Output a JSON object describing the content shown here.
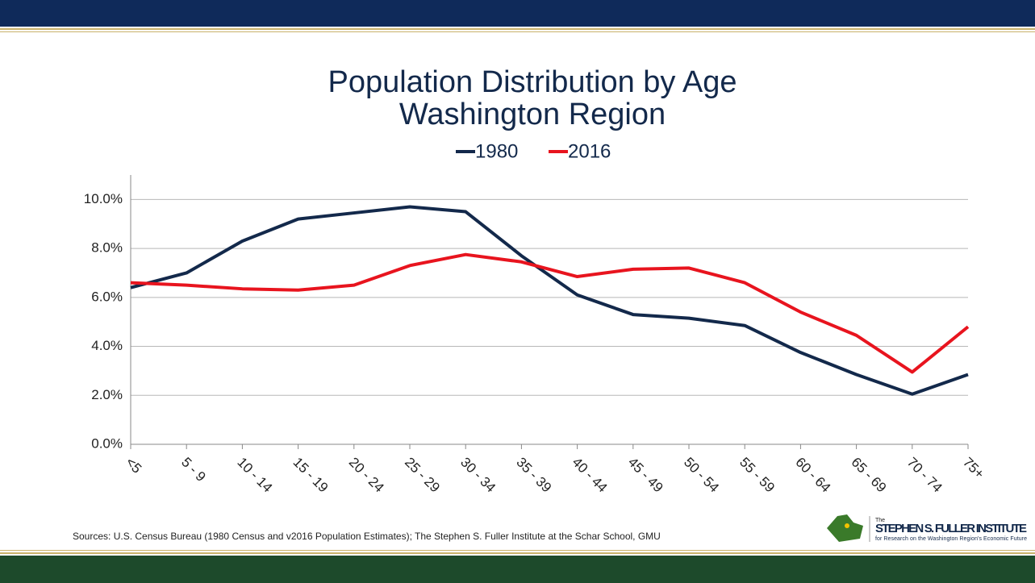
{
  "chart_data": {
    "type": "line",
    "title": "Population Distribution by Age",
    "subtitle": "Washington Region",
    "categories": [
      "<5",
      "5 - 9",
      "10 - 14",
      "15 - 19",
      "20 - 24",
      "25 - 29",
      "30 - 34",
      "35 - 39",
      "40 - 44",
      "45 - 49",
      "50 - 54",
      "55 - 59",
      "60 - 64",
      "65 - 69",
      "70 - 74",
      "75+"
    ],
    "series": [
      {
        "name": "1980",
        "color": "#13294b",
        "values": [
          6.4,
          7.0,
          8.3,
          9.2,
          9.45,
          9.7,
          9.5,
          7.7,
          6.1,
          5.3,
          5.15,
          4.85,
          3.75,
          2.85,
          2.05,
          2.85
        ]
      },
      {
        "name": "2016",
        "color": "#e8141e",
        "values": [
          6.6,
          6.5,
          6.35,
          6.3,
          6.5,
          7.3,
          7.75,
          7.45,
          6.85,
          7.15,
          7.2,
          6.6,
          5.4,
          4.45,
          2.95,
          4.8
        ]
      }
    ],
    "ylim": [
      0,
      11
    ],
    "yticks": [
      {
        "value": 0,
        "label": "0.0%"
      },
      {
        "value": 2,
        "label": "2.0%"
      },
      {
        "value": 4,
        "label": "4.0%"
      },
      {
        "value": 6,
        "label": "6.0%"
      },
      {
        "value": 8,
        "label": "8.0%"
      },
      {
        "value": 10,
        "label": "10.0%"
      }
    ],
    "grid": true,
    "legend": "top",
    "source": "Sources: U.S. Census Bureau (1980 Census and v2016 Population Estimates); The Stephen S. Fuller Institute at the Schar School, GMU"
  },
  "logo": {
    "small": "The",
    "name": "STEPHEN S. FULLER INSTITUTE",
    "tagline": "for Research on the Washington Region's Economic Future"
  }
}
